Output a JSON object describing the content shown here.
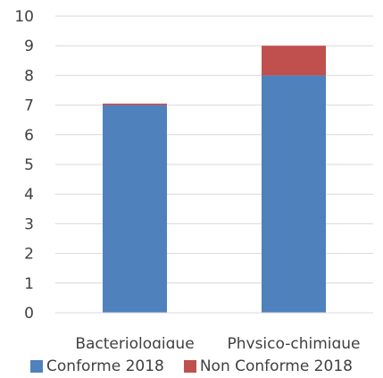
{
  "chart_data": {
    "type": "bar",
    "stacked": true,
    "categories": [
      "Bacteriologique",
      "Physico-chimique"
    ],
    "series": [
      {
        "name": "Conforme 2018",
        "values": [
          7,
          8
        ],
        "color": "#4F81BD"
      },
      {
        "name": "Non Conforme 2018",
        "values": [
          0.05,
          1
        ],
        "color": "#C0504D"
      }
    ],
    "ylim": [
      0,
      10
    ],
    "yticks": [
      0,
      1,
      2,
      3,
      4,
      5,
      6,
      7,
      8,
      9,
      10
    ],
    "grid": true,
    "legend": "bottom"
  }
}
